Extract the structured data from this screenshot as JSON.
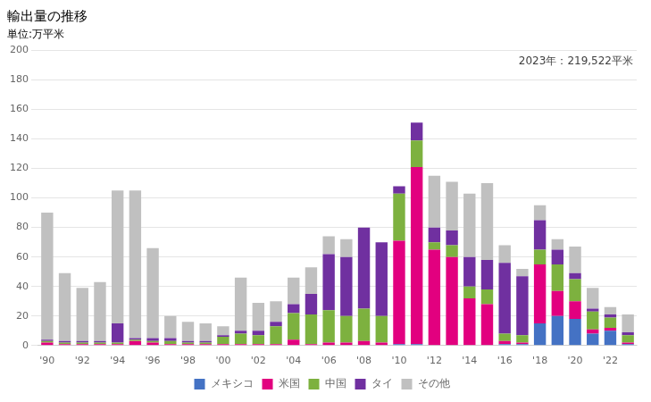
{
  "chart_data": {
    "type": "bar",
    "title": "輸出量の推移",
    "subtitle": "単位:万平米",
    "annotation": "2023年：219,522平米",
    "categories": [
      "'90",
      null,
      "'92",
      null,
      "'94",
      null,
      "'96",
      null,
      "'98",
      null,
      "'00",
      null,
      "'02",
      null,
      "'04",
      null,
      "'06",
      null,
      "'08",
      null,
      "'10",
      null,
      "'12",
      null,
      "'14",
      null,
      "'16",
      null,
      "'18",
      null,
      "'20",
      null,
      "'22",
      null
    ],
    "series": [
      {
        "name": "メキシコ",
        "color": "#4472c4",
        "values": [
          0,
          0,
          0,
          0,
          0,
          0,
          0,
          0,
          0,
          0,
          0,
          0,
          0,
          0,
          0,
          0,
          0,
          0,
          0,
          0,
          1,
          1,
          0,
          0,
          0,
          0,
          1,
          1,
          15,
          20,
          18,
          8,
          10,
          1
        ]
      },
      {
        "name": "米国",
        "color": "#e2007f",
        "values": [
          2,
          1,
          1,
          1,
          1,
          3,
          2,
          1,
          1,
          1,
          1,
          1,
          1,
          1,
          4,
          1,
          2,
          2,
          3,
          2,
          70,
          120,
          65,
          60,
          32,
          28,
          2,
          1,
          40,
          17,
          12,
          3,
          2,
          1
        ]
      },
      {
        "name": "中国",
        "color": "#7db13f",
        "values": [
          1,
          1,
          1,
          1,
          1,
          1,
          1,
          2,
          1,
          1,
          5,
          7,
          6,
          12,
          18,
          20,
          22,
          18,
          22,
          18,
          32,
          18,
          5,
          8,
          8,
          10,
          5,
          5,
          10,
          18,
          15,
          12,
          7,
          5
        ]
      },
      {
        "name": "タイ",
        "color": "#7030a0",
        "values": [
          1,
          1,
          1,
          1,
          13,
          1,
          2,
          2,
          1,
          1,
          1,
          2,
          3,
          3,
          6,
          14,
          38,
          40,
          55,
          50,
          5,
          12,
          10,
          10,
          20,
          20,
          48,
          40,
          20,
          10,
          4,
          2,
          2,
          2
        ]
      },
      {
        "name": "その他",
        "color": "#c0c0c0",
        "values": [
          86,
          46,
          36,
          40,
          90,
          100,
          61,
          15,
          13,
          12,
          6,
          36,
          19,
          14,
          18,
          18,
          12,
          12,
          0,
          0,
          0,
          0,
          35,
          33,
          43,
          52,
          12,
          5,
          10,
          7,
          18,
          14,
          5,
          12
        ]
      }
    ],
    "stacked": true,
    "ylim": [
      0,
      200
    ],
    "yticks": [
      0,
      20,
      40,
      60,
      80,
      100,
      120,
      140,
      160,
      180,
      200
    ],
    "grid": true,
    "legend": "bottom"
  }
}
